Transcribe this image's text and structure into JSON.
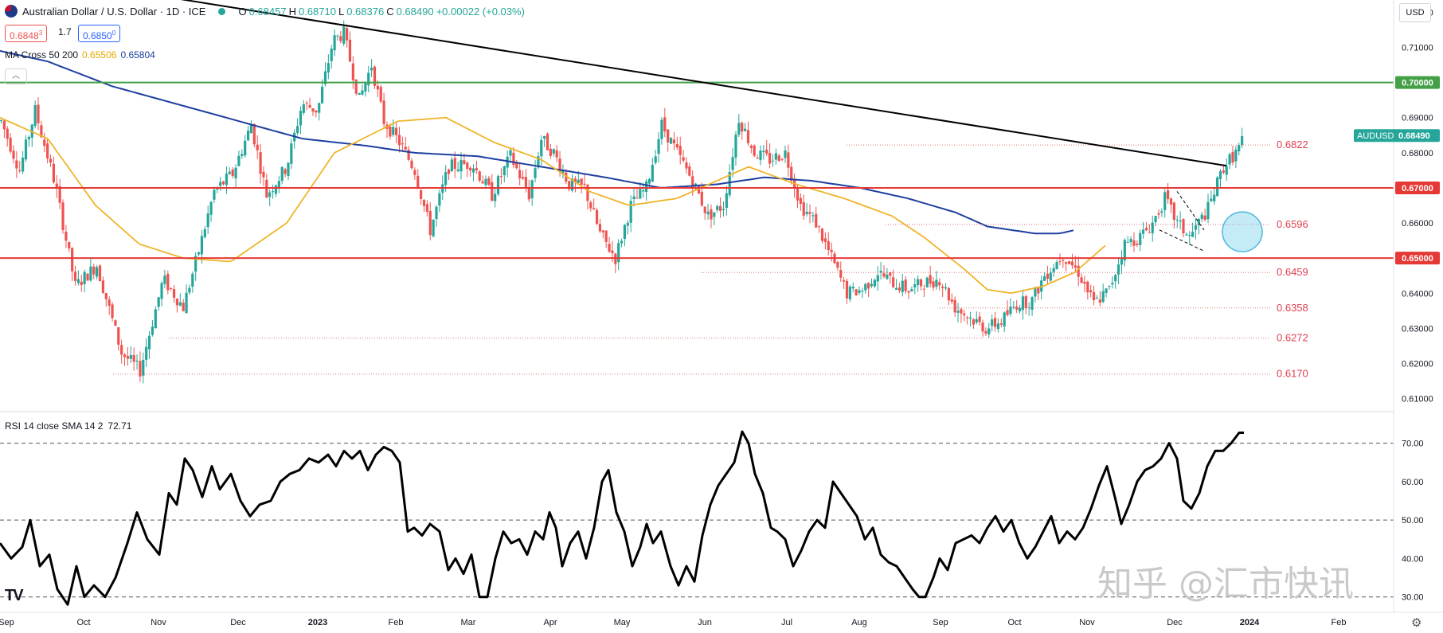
{
  "header": {
    "symbol_title": "Australian Dollar / U.S. Dollar · 1D · ICE",
    "ohlc": [
      {
        "k": "O",
        "v": "0.68457"
      },
      {
        "k": "H",
        "v": "0.68710"
      },
      {
        "k": "L",
        "v": "0.68376"
      },
      {
        "k": "C",
        "v": "0.68490"
      }
    ],
    "change": "+0.00022 (+0.03%)",
    "sell_price": "0.6848",
    "sell_price_sup": "3",
    "spread": "1.7",
    "buy_price": "0.6850",
    "buy_price_sup": "0",
    "currency": "USD"
  },
  "indicator_ma": {
    "label": "MA Cross 50 200",
    "ma50_value": "0.65506",
    "ma200_value": "0.65804",
    "ma50_color": "#f0b429",
    "ma200_color": "#1e3fa0"
  },
  "indicator_rsi": {
    "label": "RSI 14 close SMA 14 2",
    "value": "72.71"
  },
  "colors": {
    "up": "#26a69a",
    "down": "#ef5350",
    "resistance_green": "#43a047",
    "support_red": "#e53935",
    "trendline": "#000000",
    "level_text": "#e04050"
  },
  "watermark": "知乎 @汇市快讯",
  "logo_text": "TV",
  "chart_data": [
    {
      "type": "candlestick",
      "title": "Australian Dollar / U.S. Dollar · 1D · ICE",
      "symbol": "AUDUSD",
      "last_price": "0.68490",
      "ylim": [
        0.6065,
        0.7235
      ],
      "y_ticks": [
        "0.61000",
        "0.62000",
        "0.63000",
        "0.64000",
        "0.65000",
        "0.66000",
        "0.67000",
        "0.68000",
        "0.69000",
        "0.70000",
        "0.71000",
        "0.72000"
      ],
      "x_ticks": [
        "Sep",
        "Oct",
        "Nov",
        "Dec",
        "2023",
        "Feb",
        "Mar",
        "Apr",
        "May",
        "Jun",
        "Jul",
        "Aug",
        "Sep",
        "Oct",
        "Nov",
        "Dec",
        "2024",
        "Feb"
      ],
      "horizontal_levels": [
        {
          "value": 0.7,
          "label": "0.70000",
          "color": "#43a047"
        },
        {
          "value": 0.67,
          "label": "0.67000",
          "color": "#e53935"
        },
        {
          "value": 0.65,
          "label": "0.65000",
          "color": "#e53935"
        }
      ],
      "dotted_levels": [
        "0.6822",
        "0.6596",
        "0.6459",
        "0.6358",
        "0.6272",
        "0.6170"
      ],
      "trendline": {
        "from": {
          "x": "Sep 2022",
          "y": 0.73
        },
        "to": {
          "x": "Dec 2023",
          "y": 0.6763
        }
      },
      "price_waypoints": [
        [
          0,
          0.689
        ],
        [
          12,
          0.675
        ],
        [
          22,
          0.692
        ],
        [
          35,
          0.671
        ],
        [
          48,
          0.642
        ],
        [
          62,
          0.648
        ],
        [
          78,
          0.623
        ],
        [
          90,
          0.618
        ],
        [
          105,
          0.644
        ],
        [
          118,
          0.636
        ],
        [
          128,
          0.652
        ],
        [
          138,
          0.669
        ],
        [
          150,
          0.674
        ],
        [
          162,
          0.688
        ],
        [
          172,
          0.668
        ],
        [
          185,
          0.676
        ],
        [
          195,
          0.694
        ],
        [
          205,
          0.692
        ],
        [
          215,
          0.712
        ],
        [
          222,
          0.714
        ],
        [
          232,
          0.695
        ],
        [
          240,
          0.705
        ],
        [
          248,
          0.689
        ],
        [
          258,
          0.683
        ],
        [
          268,
          0.675
        ],
        [
          278,
          0.658
        ],
        [
          290,
          0.676
        ],
        [
          305,
          0.677
        ],
        [
          318,
          0.668
        ],
        [
          330,
          0.679
        ],
        [
          342,
          0.668
        ],
        [
          350,
          0.684
        ],
        [
          358,
          0.68
        ],
        [
          368,
          0.671
        ],
        [
          378,
          0.67
        ],
        [
          388,
          0.657
        ],
        [
          398,
          0.65
        ],
        [
          408,
          0.665
        ],
        [
          418,
          0.67
        ],
        [
          428,
          0.688
        ],
        [
          438,
          0.68
        ],
        [
          448,
          0.672
        ],
        [
          458,
          0.662
        ],
        [
          468,
          0.665
        ],
        [
          478,
          0.69
        ],
        [
          488,
          0.68
        ],
        [
          498,
          0.678
        ],
        [
          508,
          0.68
        ],
        [
          518,
          0.665
        ],
        [
          528,
          0.66
        ],
        [
          538,
          0.65
        ],
        [
          548,
          0.64
        ],
        [
          558,
          0.641
        ],
        [
          568,
          0.646
        ],
        [
          578,
          0.643
        ],
        [
          588,
          0.641
        ],
        [
          598,
          0.643
        ],
        [
          608,
          0.644
        ],
        [
          618,
          0.636
        ],
        [
          628,
          0.633
        ],
        [
          638,
          0.63
        ],
        [
          648,
          0.632
        ],
        [
          658,
          0.637
        ],
        [
          668,
          0.638
        ],
        [
          676,
          0.645
        ],
        [
          688,
          0.651
        ],
        [
          698,
          0.646
        ],
        [
          708,
          0.637
        ],
        [
          718,
          0.641
        ],
        [
          728,
          0.654
        ],
        [
          738,
          0.656
        ],
        [
          746,
          0.66
        ],
        [
          754,
          0.667
        ],
        [
          762,
          0.66
        ],
        [
          770,
          0.656
        ],
        [
          782,
          0.664
        ],
        [
          792,
          0.676
        ],
        [
          800,
          0.68
        ],
        [
          806,
          0.6849
        ]
      ],
      "ma50_waypoints": [
        [
          0,
          0.69
        ],
        [
          60,
          0.684
        ],
        [
          120,
          0.665
        ],
        [
          175,
          0.654
        ],
        [
          230,
          0.65
        ],
        [
          290,
          0.649
        ],
        [
          360,
          0.66
        ],
        [
          420,
          0.68
        ],
        [
          500,
          0.689
        ],
        [
          560,
          0.69
        ],
        [
          620,
          0.683
        ],
        [
          680,
          0.678
        ],
        [
          740,
          0.669
        ],
        [
          790,
          0.665
        ],
        [
          850,
          0.667
        ],
        [
          900,
          0.672
        ],
        [
          940,
          0.676
        ],
        [
          1000,
          0.671
        ],
        [
          1060,
          0.667
        ],
        [
          1120,
          0.662
        ],
        [
          1160,
          0.656
        ],
        [
          1210,
          0.647
        ],
        [
          1240,
          0.641
        ],
        [
          1270,
          0.64
        ],
        [
          1310,
          0.642
        ],
        [
          1350,
          0.646
        ],
        [
          1390,
          0.654
        ]
      ],
      "ma200_waypoints": [
        [
          0,
          0.709
        ],
        [
          60,
          0.706
        ],
        [
          140,
          0.699
        ],
        [
          220,
          0.694
        ],
        [
          300,
          0.689
        ],
        [
          380,
          0.684
        ],
        [
          460,
          0.682
        ],
        [
          520,
          0.68
        ],
        [
          600,
          0.679
        ],
        [
          680,
          0.676
        ],
        [
          760,
          0.673
        ],
        [
          830,
          0.67
        ],
        [
          900,
          0.671
        ],
        [
          960,
          0.673
        ],
        [
          1020,
          0.672
        ],
        [
          1080,
          0.67
        ],
        [
          1140,
          0.667
        ],
        [
          1200,
          0.663
        ],
        [
          1240,
          0.659
        ],
        [
          1270,
          0.658
        ],
        [
          1300,
          0.657
        ],
        [
          1330,
          0.657
        ],
        [
          1350,
          0.658
        ]
      ]
    },
    {
      "type": "line",
      "title": "RSI 14 close SMA 14 2",
      "last_value": "72.71",
      "ylim": [
        26,
        78
      ],
      "y_ticks": [
        "30.00",
        "40.00",
        "50.00",
        "60.00",
        "70.00"
      ],
      "guide_levels": [
        70,
        50,
        30
      ],
      "waypoints": [
        [
          0,
          44
        ],
        [
          14,
          40
        ],
        [
          28,
          43
        ],
        [
          38,
          50
        ],
        [
          50,
          38
        ],
        [
          62,
          41
        ],
        [
          72,
          32
        ],
        [
          85,
          28
        ],
        [
          96,
          38
        ],
        [
          106,
          30
        ],
        [
          118,
          33
        ],
        [
          132,
          30
        ],
        [
          145,
          35
        ],
        [
          160,
          44
        ],
        [
          172,
          52
        ],
        [
          185,
          45
        ],
        [
          200,
          41
        ],
        [
          212,
          57
        ],
        [
          222,
          54
        ],
        [
          232,
          66
        ],
        [
          242,
          63
        ],
        [
          254,
          56
        ],
        [
          266,
          64
        ],
        [
          276,
          58
        ],
        [
          290,
          62
        ],
        [
          302,
          55
        ],
        [
          314,
          51
        ],
        [
          326,
          54
        ],
        [
          340,
          55
        ],
        [
          352,
          60
        ],
        [
          364,
          62
        ],
        [
          376,
          63
        ],
        [
          388,
          66
        ],
        [
          400,
          65
        ],
        [
          412,
          67
        ],
        [
          422,
          64
        ],
        [
          432,
          68
        ],
        [
          442,
          66
        ],
        [
          452,
          68
        ],
        [
          462,
          63
        ],
        [
          472,
          67
        ],
        [
          482,
          69
        ],
        [
          492,
          68
        ],
        [
          502,
          65
        ],
        [
          512,
          47
        ],
        [
          520,
          48
        ],
        [
          530,
          46
        ],
        [
          540,
          49
        ],
        [
          552,
          47
        ],
        [
          563,
          37
        ],
        [
          572,
          40
        ],
        [
          582,
          36
        ],
        [
          592,
          41
        ],
        [
          602,
          30
        ],
        [
          612,
          30
        ],
        [
          622,
          40
        ],
        [
          632,
          47
        ],
        [
          642,
          44
        ],
        [
          652,
          45
        ],
        [
          662,
          41
        ],
        [
          672,
          47
        ],
        [
          682,
          45
        ],
        [
          690,
          52
        ],
        [
          698,
          48
        ],
        [
          706,
          38
        ],
        [
          716,
          44
        ],
        [
          726,
          47
        ],
        [
          736,
          40
        ],
        [
          746,
          48
        ],
        [
          756,
          60
        ],
        [
          764,
          63
        ],
        [
          774,
          52
        ],
        [
          784,
          47
        ],
        [
          794,
          38
        ],
        [
          804,
          43
        ],
        [
          812,
          49
        ],
        [
          820,
          44
        ],
        [
          830,
          47
        ],
        [
          842,
          38
        ],
        [
          852,
          33
        ],
        [
          862,
          38
        ],
        [
          872,
          34
        ],
        [
          882,
          46
        ],
        [
          892,
          54
        ],
        [
          902,
          59
        ],
        [
          912,
          62
        ],
        [
          922,
          65
        ],
        [
          932,
          73
        ],
        [
          940,
          70
        ],
        [
          948,
          62
        ],
        [
          958,
          57
        ],
        [
          968,
          48
        ],
        [
          976,
          47
        ],
        [
          986,
          45
        ],
        [
          996,
          38
        ],
        [
          1006,
          42
        ],
        [
          1016,
          47
        ],
        [
          1026,
          50
        ],
        [
          1036,
          48
        ],
        [
          1046,
          60
        ],
        [
          1056,
          57
        ],
        [
          1066,
          54
        ],
        [
          1076,
          51
        ],
        [
          1086,
          45
        ],
        [
          1096,
          48
        ],
        [
          1106,
          41
        ],
        [
          1116,
          39
        ],
        [
          1126,
          38
        ],
        [
          1136,
          35
        ],
        [
          1146,
          32
        ],
        [
          1154,
          30
        ],
        [
          1162,
          30
        ],
        [
          1172,
          35
        ],
        [
          1180,
          40
        ],
        [
          1190,
          37
        ],
        [
          1200,
          44
        ],
        [
          1210,
          45
        ],
        [
          1220,
          46
        ],
        [
          1230,
          44
        ],
        [
          1240,
          48
        ],
        [
          1250,
          51
        ],
        [
          1260,
          47
        ],
        [
          1270,
          50
        ],
        [
          1280,
          44
        ],
        [
          1290,
          40
        ],
        [
          1300,
          43
        ],
        [
          1310,
          47
        ],
        [
          1320,
          51
        ],
        [
          1330,
          44
        ],
        [
          1340,
          47
        ],
        [
          1350,
          45
        ],
        [
          1360,
          48
        ],
        [
          1370,
          53
        ],
        [
          1380,
          59
        ],
        [
          1390,
          64
        ],
        [
          1400,
          56
        ],
        [
          1408,
          49
        ],
        [
          1418,
          54
        ],
        [
          1428,
          60
        ],
        [
          1438,
          63
        ],
        [
          1448,
          64
        ],
        [
          1458,
          66
        ],
        [
          1468,
          70
        ],
        [
          1478,
          66
        ],
        [
          1486,
          55
        ],
        [
          1496,
          53
        ],
        [
          1506,
          57
        ],
        [
          1516,
          64
        ],
        [
          1526,
          68
        ],
        [
          1536,
          68
        ],
        [
          1546,
          70
        ],
        [
          1556,
          72.71
        ],
        [
          1562,
          72.71
        ]
      ]
    }
  ]
}
